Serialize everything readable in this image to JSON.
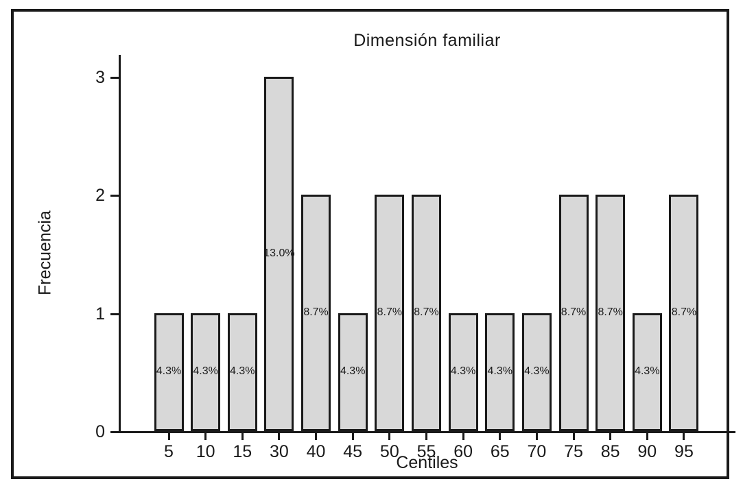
{
  "figure": {
    "background_color": "#ffffff",
    "frame_color": "#1a1a1a"
  },
  "chart_data": {
    "type": "bar",
    "title": "Dimensión familiar",
    "xlabel": "Centiles",
    "ylabel": "Frecuencia",
    "categories": [
      "5",
      "10",
      "15",
      "30",
      "40",
      "45",
      "50",
      "55",
      "60",
      "65",
      "70",
      "75",
      "85",
      "90",
      "95"
    ],
    "values": [
      1,
      1,
      1,
      3,
      2,
      1,
      2,
      2,
      1,
      1,
      1,
      2,
      2,
      1,
      2
    ],
    "bar_labels": [
      "4.3%",
      "4.3%",
      "4.3%",
      "13.0%",
      "8.7%",
      "4.3%",
      "8.7%",
      "8.7%",
      "4.3%",
      "4.3%",
      "4.3%",
      "8.7%",
      "8.7%",
      "4.3%",
      "8.7%"
    ],
    "yticks": [
      "0",
      "1",
      "2",
      "3"
    ],
    "ylim": [
      0,
      3.2
    ],
    "grid": false,
    "legend": null,
    "bar_fill": "#d8d8d8",
    "bar_border": "#1a1a1a"
  }
}
